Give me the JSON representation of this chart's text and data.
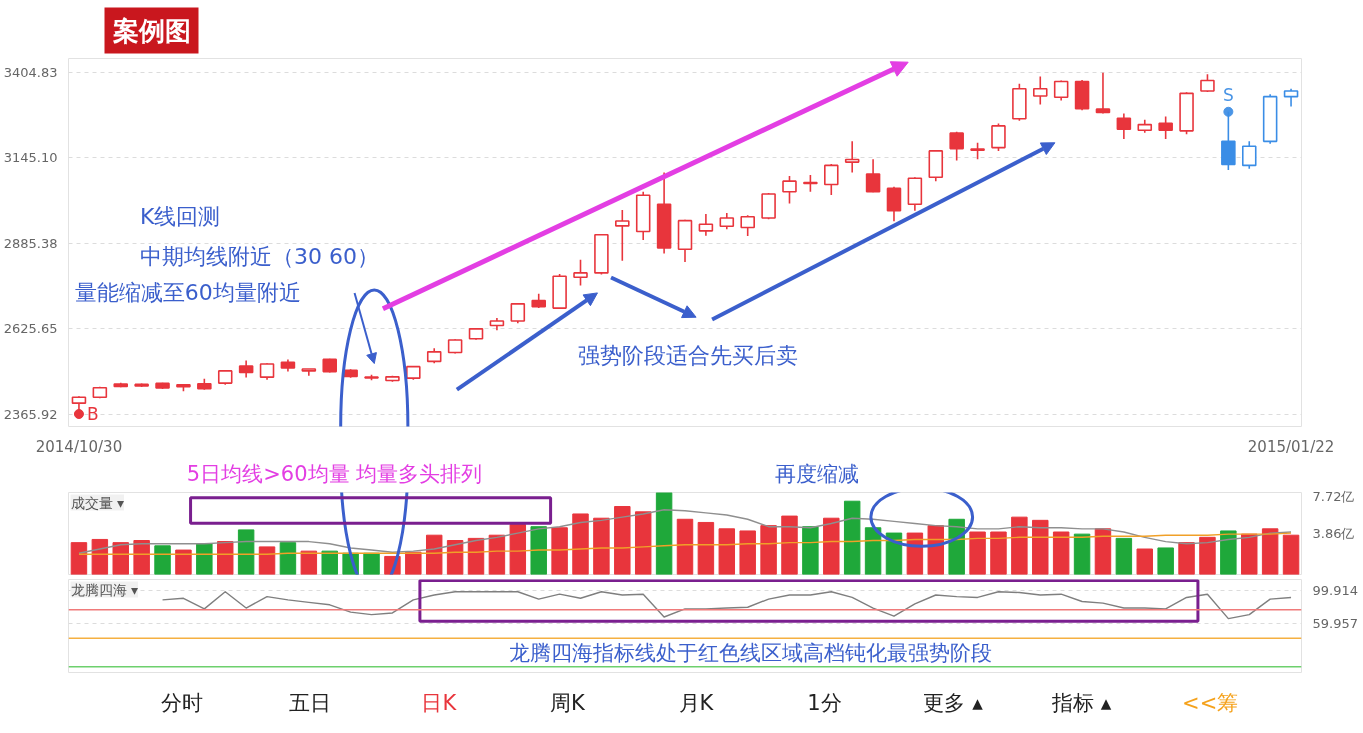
{
  "chart_data": [
    {
      "type": "candlestick",
      "title": "案例图",
      "categories": [
        "2014/10/30",
        null,
        null,
        null,
        null,
        null,
        null,
        null,
        null,
        null,
        null,
        null,
        null,
        null,
        null,
        null,
        null,
        null,
        null,
        null,
        null,
        null,
        null,
        null,
        null,
        null,
        null,
        null,
        null,
        null,
        null,
        null,
        null,
        null,
        null,
        null,
        null,
        null,
        null,
        null,
        null,
        null,
        null,
        null,
        null,
        null,
        null,
        null,
        null,
        null,
        null,
        null,
        null,
        null,
        null,
        null,
        null,
        null,
        "2015/01/22"
      ],
      "ohlc": [
        [
          2399,
          2420,
          2366,
          2417
        ],
        [
          2417,
          2449,
          2414,
          2446
        ],
        [
          2457,
          2461,
          2447,
          2450
        ],
        [
          2456,
          2459,
          2448,
          2451
        ],
        [
          2459,
          2461,
          2442,
          2445
        ],
        [
          2455,
          2457,
          2435,
          2449
        ],
        [
          2458,
          2473,
          2440,
          2443
        ],
        [
          2460,
          2499,
          2455,
          2497
        ],
        [
          2512,
          2529,
          2477,
          2492
        ],
        [
          2478,
          2520,
          2470,
          2518
        ],
        [
          2523,
          2532,
          2495,
          2506
        ],
        [
          2497,
          2503,
          2482,
          2503
        ],
        [
          2532,
          2534,
          2492,
          2495
        ],
        [
          2499,
          2502,
          2476,
          2480
        ],
        [
          2476,
          2485,
          2469,
          2478
        ],
        [
          2468,
          2482,
          2464,
          2479
        ],
        [
          2475,
          2512,
          2470,
          2510
        ],
        [
          2526,
          2566,
          2520,
          2555
        ],
        [
          2553,
          2593,
          2550,
          2591
        ],
        [
          2595,
          2627,
          2592,
          2625
        ],
        [
          2635,
          2658,
          2621,
          2649
        ],
        [
          2649,
          2703,
          2642,
          2701
        ],
        [
          2711,
          2732,
          2688,
          2692
        ],
        [
          2688,
          2792,
          2686,
          2785
        ],
        [
          2782,
          2835,
          2757,
          2795
        ],
        [
          2795,
          2913,
          2790,
          2911
        ],
        [
          2938,
          2986,
          2832,
          2953
        ],
        [
          2921,
          3042,
          2895,
          3031
        ],
        [
          3004,
          3100,
          2854,
          2871
        ],
        [
          2867,
          2957,
          2828,
          2954
        ],
        [
          2923,
          2974,
          2908,
          2943
        ],
        [
          2937,
          2977,
          2928,
          2962
        ],
        [
          2933,
          2970,
          2907,
          2966
        ],
        [
          2962,
          3038,
          2958,
          3035
        ],
        [
          3042,
          3090,
          3006,
          3074
        ],
        [
          3067,
          3093,
          3042,
          3070
        ],
        [
          3064,
          3126,
          3032,
          3122
        ],
        [
          3132,
          3195,
          3100,
          3140
        ],
        [
          3096,
          3141,
          3040,
          3042
        ],
        [
          3052,
          3057,
          2952,
          2984
        ],
        [
          3004,
          3086,
          2984,
          3083
        ],
        [
          3086,
          3169,
          3074,
          3166
        ],
        [
          3220,
          3224,
          3137,
          3173
        ],
        [
          3168,
          3191,
          3141,
          3172
        ],
        [
          3176,
          3249,
          3166,
          3242
        ],
        [
          3264,
          3370,
          3258,
          3355
        ],
        [
          3333,
          3392,
          3307,
          3355
        ],
        [
          3329,
          3380,
          3319,
          3377
        ],
        [
          3377,
          3382,
          3290,
          3294
        ],
        [
          3293,
          3404,
          3280,
          3283
        ],
        [
          3265,
          3280,
          3202,
          3232
        ],
        [
          3229,
          3261,
          3221,
          3246
        ],
        [
          3250,
          3271,
          3202,
          3229
        ],
        [
          3227,
          3344,
          3217,
          3341
        ],
        [
          3348,
          3399,
          3345,
          3380
        ],
        [
          3195,
          3285,
          3108,
          3125
        ],
        [
          3122,
          3195,
          3112,
          3180
        ],
        [
          3195,
          3338,
          3188,
          3331
        ],
        [
          3331,
          3355,
          3301,
          3348
        ]
      ],
      "colors": [
        "#e8353c",
        "#e8353c",
        "#e8353c",
        "#e8353c",
        "#e8353c",
        "#e8353c",
        "#e8353c",
        "#e8353c",
        "#e8353c",
        "#e8353c",
        "#e8353c",
        "#e8353c",
        "#e8353c",
        "#e8353c",
        "#e8353c",
        "#e8353c",
        "#e8353c",
        "#e8353c",
        "#e8353c",
        "#e8353c",
        "#e8353c",
        "#e8353c",
        "#e8353c",
        "#e8353c",
        "#e8353c",
        "#e8353c",
        "#e8353c",
        "#e8353c",
        "#e8353c",
        "#e8353c",
        "#e8353c",
        "#e8353c",
        "#e8353c",
        "#e8353c",
        "#e8353c",
        "#e8353c",
        "#e8353c",
        "#e8353c",
        "#e8353c",
        "#e8353c",
        "#e8353c",
        "#e8353c",
        "#e8353c",
        "#e8353c",
        "#e8353c",
        "#e8353c",
        "#e8353c",
        "#e8353c",
        "#e8353c",
        "#e8353c",
        "#e8353c",
        "#e8353c",
        "#e8353c",
        "#e8353c",
        "#e8353c",
        "#3a8de6",
        "#3a8de6",
        "#3a8de6",
        "#3a8de6"
      ],
      "series": [
        {
          "name": "B",
          "type": "scatter",
          "color": "#e8353c",
          "values": [
            2366,
            null,
            null,
            null,
            null,
            null,
            null,
            null,
            null,
            null,
            null,
            null,
            null,
            null,
            null,
            null,
            null,
            null,
            null,
            null,
            null,
            null,
            null,
            null,
            null,
            null,
            null,
            null,
            null,
            null,
            null,
            null,
            null,
            null,
            null,
            null,
            null,
            null,
            null,
            null,
            null,
            null,
            null,
            null,
            null,
            null,
            null,
            null,
            null,
            null,
            null,
            null,
            null,
            null,
            null,
            null,
            null,
            null,
            null
          ]
        },
        {
          "name": "S",
          "type": "scatter",
          "color": "#4a95e6",
          "values": [
            null,
            null,
            null,
            null,
            null,
            null,
            null,
            null,
            null,
            null,
            null,
            null,
            null,
            null,
            null,
            null,
            null,
            null,
            null,
            null,
            null,
            null,
            null,
            null,
            null,
            null,
            null,
            null,
            null,
            null,
            null,
            null,
            null,
            null,
            null,
            null,
            null,
            null,
            null,
            null,
            null,
            null,
            null,
            null,
            null,
            null,
            null,
            null,
            null,
            null,
            null,
            null,
            null,
            null,
            null,
            3285,
            null,
            null,
            null
          ]
        }
      ],
      "marker": "circle",
      "ylim": [
        2328,
        3447
      ],
      "yticks": [
        3404.83,
        {
          "value": 3145.1,
          "label": "3145.10"
        },
        2885.38,
        2625.65,
        2365.92
      ],
      "grid": "y",
      "annotations": [
        "K线回测",
        "中期均线附近（30 60）",
        "量能缩减至60均量附近",
        "强势阶段适合先买后卖"
      ]
    },
    {
      "type": "bar",
      "title": "成交量 ▾",
      "categories": [
        null,
        null,
        null,
        null,
        null,
        null,
        null,
        null,
        null,
        null,
        null,
        null,
        null,
        null,
        null,
        null,
        null,
        null,
        null,
        null,
        null,
        null,
        null,
        null,
        null,
        null,
        null,
        null,
        null,
        null,
        null,
        null,
        null,
        null,
        null,
        null,
        null,
        null,
        null,
        null,
        null,
        null,
        null,
        null,
        null,
        null,
        null,
        null,
        null,
        null,
        null,
        null,
        null,
        null,
        null,
        null,
        null,
        null,
        null
      ],
      "series": [
        {
          "type": "bar",
          "values": [
            3.0,
            3.3,
            3.0,
            3.2,
            2.7,
            2.3,
            2.9,
            3.1,
            4.2,
            2.6,
            3.0,
            2.2,
            2.2,
            2.0,
            2.0,
            1.7,
            2.1,
            3.7,
            3.2,
            3.4,
            3.7,
            4.7,
            4.5,
            4.4,
            5.7,
            5.3,
            6.4,
            5.9,
            7.7,
            5.2,
            4.9,
            4.3,
            4.1,
            4.6,
            5.5,
            4.5,
            5.3,
            6.9,
            4.4,
            3.9,
            3.9,
            4.6,
            5.2,
            4.0,
            4.0,
            5.4,
            5.1,
            4.0,
            3.8,
            4.3,
            3.4,
            2.4,
            2.5,
            3.0,
            3.5,
            4.1,
            3.8,
            4.3,
            3.7
          ],
          "colors": [
            "#e8353c",
            "#e8353c",
            "#e8353c",
            "#e8353c",
            "#1fa83a",
            "#e8353c",
            "#1fa83a",
            "#e8353c",
            "#1fa83a",
            "#e8353c",
            "#1fa83a",
            "#e8353c",
            "#1fa83a",
            "#1fa83a",
            "#1fa83a",
            "#e8353c",
            "#e8353c",
            "#e8353c",
            "#e8353c",
            "#e8353c",
            "#e8353c",
            "#e8353c",
            "#1fa83a",
            "#e8353c",
            "#e8353c",
            "#e8353c",
            "#e8353c",
            "#e8353c",
            "#1fa83a",
            "#e8353c",
            "#e8353c",
            "#e8353c",
            "#e8353c",
            "#e8353c",
            "#e8353c",
            "#1fa83a",
            "#e8353c",
            "#1fa83a",
            "#1fa83a",
            "#1fa83a",
            "#e8353c",
            "#e8353c",
            "#1fa83a",
            "#e8353c",
            "#e8353c",
            "#e8353c",
            "#e8353c",
            "#e8353c",
            "#1fa83a",
            "#e8353c",
            "#1fa83a",
            "#e8353c",
            "#1fa83a",
            "#e8353c",
            "#e8353c",
            "#1fa83a",
            "#e8353c",
            "#e8353c",
            "#e8353c"
          ]
        },
        {
          "type": "line",
          "color": "#8f8f8f",
          "values": [
            2.0,
            2.4,
            2.8,
            2.9,
            2.9,
            2.9,
            2.9,
            3.0,
            3.1,
            3.1,
            3.1,
            3.1,
            2.9,
            2.5,
            2.3,
            2.1,
            2.2,
            2.4,
            2.8,
            3.2,
            3.5,
            3.9,
            4.3,
            4.5,
            4.9,
            5.1,
            5.4,
            5.7,
            6.1,
            6.0,
            5.8,
            5.6,
            5.2,
            4.5,
            4.5,
            4.4,
            4.8,
            5.3,
            5.2,
            5.0,
            4.8,
            4.6,
            4.5,
            4.3,
            4.3,
            4.5,
            4.4,
            4.4,
            4.3,
            4.3,
            4.0,
            3.5,
            3.1,
            2.9,
            3.0,
            3.3,
            3.5,
            3.9,
            4.0
          ]
        },
        {
          "type": "line",
          "color": "#f0a028",
          "values": [
            1.9,
            1.9,
            1.9,
            1.9,
            1.9,
            1.9,
            1.9,
            1.9,
            1.9,
            1.9,
            2.0,
            2.0,
            2.0,
            2.0,
            2.0,
            2.0,
            2.0,
            2.0,
            2.1,
            2.1,
            2.2,
            2.2,
            2.3,
            2.3,
            2.4,
            2.5,
            2.5,
            2.6,
            2.7,
            2.8,
            2.8,
            2.8,
            2.9,
            2.9,
            3.0,
            3.0,
            3.1,
            3.1,
            3.2,
            3.2,
            3.3,
            3.3,
            3.3,
            3.4,
            3.4,
            3.5,
            3.5,
            3.5,
            3.5,
            3.6,
            3.6,
            3.6,
            3.7,
            3.7,
            3.7,
            3.8,
            3.8,
            3.8,
            3.9
          ]
        }
      ],
      "ylim": [
        0,
        7.72
      ],
      "yticks": [
        {
          "value": 7.72,
          "label": "7.72亿"
        },
        {
          "value": 3.86,
          "label": "3.86亿"
        }
      ],
      "tick_labels": "y",
      "annotations": [
        "5日均线>60均量 均量多头排列",
        "再度缩减"
      ]
    },
    {
      "type": "line",
      "title": "龙腾四海 ▾",
      "categories": [
        null,
        null,
        null,
        null,
        null,
        null,
        null,
        null,
        null,
        null,
        null,
        null,
        null,
        null,
        null,
        null,
        null,
        null,
        null,
        null,
        null,
        null,
        null,
        null,
        null,
        null,
        null,
        null,
        null,
        null,
        null,
        null,
        null,
        null,
        null,
        null,
        null,
        null,
        null,
        null,
        null,
        null,
        null,
        null,
        null,
        null,
        null,
        null,
        null,
        null,
        null,
        null,
        null,
        null,
        null,
        null,
        null,
        null,
        null
      ],
      "series": [
        {
          "color": "#7f7f7f",
          "values": [
            null,
            null,
            null,
            null,
            89,
            91,
            78,
            99,
            79,
            93,
            89,
            86,
            83,
            74,
            71,
            73,
            89,
            95,
            99,
            99,
            99,
            99,
            90,
            96,
            91,
            99,
            95,
            96,
            68,
            78,
            78,
            79,
            80,
            90,
            95,
            95,
            99,
            92,
            79,
            69,
            84,
            95,
            93,
            92,
            99,
            98,
            95,
            96,
            87,
            85,
            79,
            79,
            78,
            92,
            96,
            66,
            71,
            90,
            92
          ]
        }
      ],
      "ylim": [
        0,
        114
      ],
      "yticks": [
        99.914,
        59.957
      ],
      "grid": "y",
      "tick_labels": "y",
      "ref_lines": [
        {
          "axis": "y",
          "value": 77,
          "color": "#f07a7a"
        },
        {
          "axis": "y",
          "value": 42,
          "color": "#f5b041"
        },
        {
          "axis": "y",
          "value": 7,
          "color": "#6dd06d"
        }
      ],
      "annotations": [
        "龙腾四海指标线处于红色线区域高档钝化最强势阶段"
      ]
    },
    {
      "type": "other",
      "categories": [
        "分时",
        "五日",
        "日K",
        "周K",
        "月K",
        "1分",
        "更多 ▴",
        "指标 ▴",
        "<<筹"
      ],
      "colors": [
        "#222222",
        "#222222",
        "#e8353c",
        "#222222",
        "#222222",
        "#222222",
        "#222222",
        "#222222",
        "#f5a21c"
      ]
    }
  ]
}
